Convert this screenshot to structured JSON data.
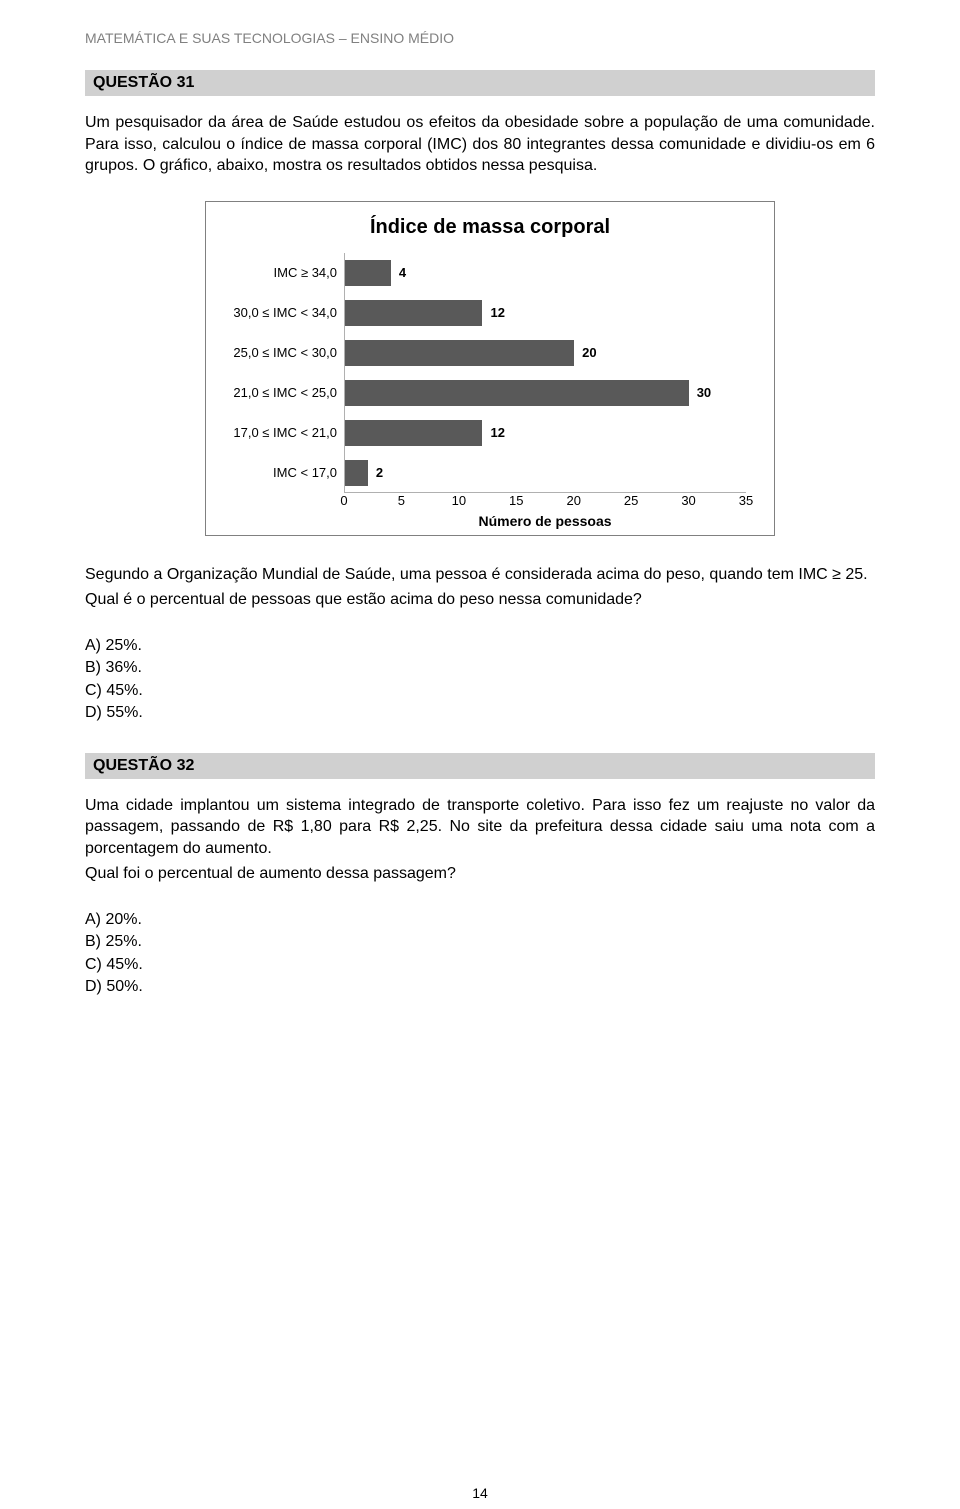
{
  "header": "MATEMÁTICA E SUAS TECNOLOGIAS – ENSINO MÉDIO",
  "page_number": "14",
  "q31": {
    "title": "QUESTÃO 31",
    "intro": "Um pesquisador da área de Saúde estudou os efeitos da obesidade sobre a população de uma comunidade. Para isso, calculou o índice de massa corporal (IMC) dos 80 integrantes dessa comunidade e dividiu-os em 6 grupos. O gráfico, abaixo, mostra os resultados obtidos nessa pesquisa.",
    "after_chart": "Segundo a Organização Mundial de Saúde, uma pessoa é considerada acima do peso, quando tem IMC ≥ 25.",
    "question_line": "Qual é o percentual de pessoas que estão acima do peso nessa comunidade?",
    "answers": {
      "a": "A) 25%.",
      "b": "B) 36%.",
      "c": "C) 45%.",
      "d": "D) 55%."
    }
  },
  "chart": {
    "type": "bar_horizontal",
    "title": "Índice de massa corporal",
    "xlabel": "Número de pessoas",
    "xlim_min": 0,
    "xlim_max": 35,
    "xtick_step": 5,
    "xticks": [
      "0",
      "5",
      "10",
      "15",
      "20",
      "25",
      "30",
      "35"
    ],
    "bar_color": "#595959",
    "background_color": "#ffffff",
    "axis_color": "#b0b0b0",
    "label_fontsize": 13,
    "categories": [
      {
        "label": "IMC ≥ 34,0",
        "value": 4
      },
      {
        "label": "30,0 ≤ IMC < 34,0",
        "value": 12
      },
      {
        "label": "25,0 ≤ IMC < 30,0",
        "value": 20
      },
      {
        "label": "21,0 ≤ IMC < 25,0",
        "value": 30
      },
      {
        "label": "17,0 ≤ IMC < 21,0",
        "value": 12
      },
      {
        "label": "IMC < 17,0",
        "value": 2
      }
    ]
  },
  "q32": {
    "title": "QUESTÃO 32",
    "intro": "Uma cidade implantou um sistema integrado de transporte coletivo. Para isso fez um reajuste no valor da passagem, passando de R$ 1,80 para R$ 2,25. No site da prefeitura dessa cidade saiu uma nota com a porcentagem do aumento.",
    "question_line": "Qual foi o percentual de aumento dessa passagem?",
    "answers": {
      "a": "A) 20%.",
      "b": "B) 25%.",
      "c": "C) 45%.",
      "d": "D) 50%."
    }
  }
}
